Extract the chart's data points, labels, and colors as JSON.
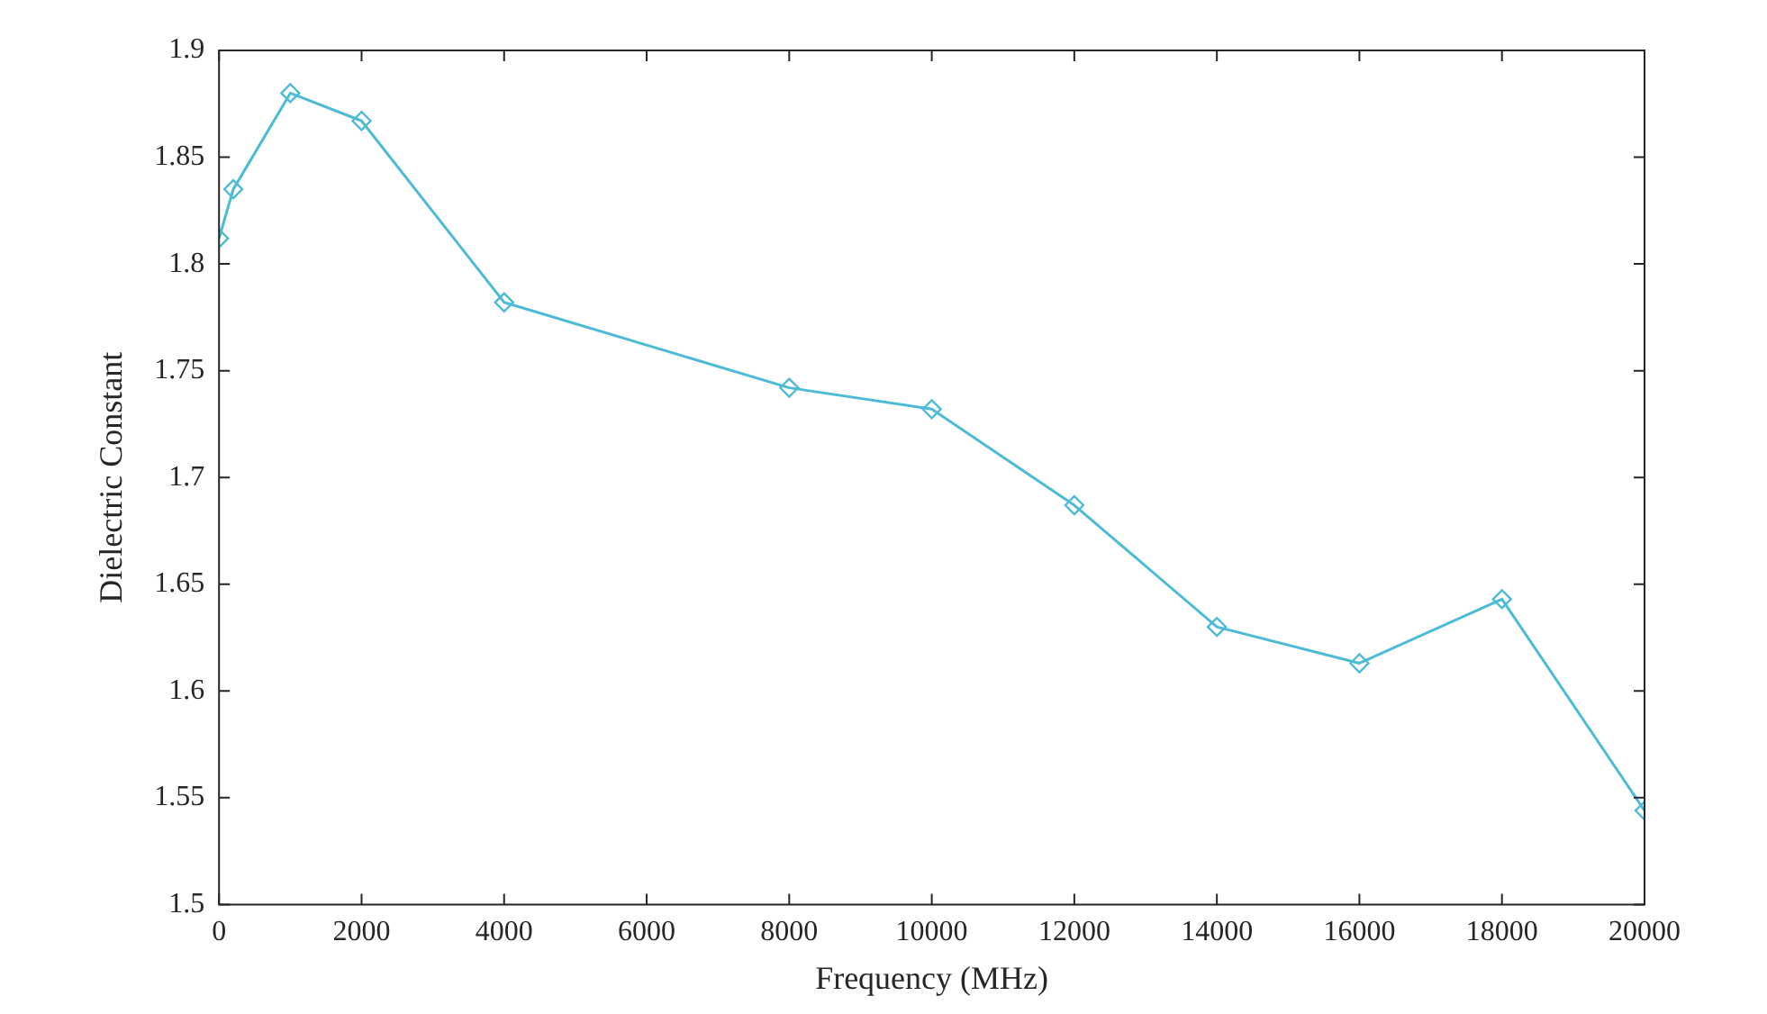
{
  "chart_data": {
    "type": "line",
    "xlabel": "Frequency (MHz)",
    "ylabel": "Dielectric Constant",
    "x": [
      0,
      200,
      1000,
      2000,
      4000,
      8000,
      10000,
      12000,
      14000,
      16000,
      18000,
      20000
    ],
    "series": [
      {
        "color": "#4dbbd5",
        "values": [
          1.812,
          1.835,
          1.88,
          1.867,
          1.782,
          1.742,
          1.732,
          1.687,
          1.63,
          1.613,
          1.643,
          1.544
        ]
      }
    ],
    "xlim": [
      0,
      20000
    ],
    "xticks": [
      0,
      2000,
      4000,
      6000,
      8000,
      10000,
      12000,
      14000,
      16000,
      18000,
      20000
    ],
    "ylim": [
      1.5,
      1.9
    ],
    "yticks": [
      1.5,
      1.55,
      1.6,
      1.65,
      1.7,
      1.75,
      1.8,
      1.85,
      1.9
    ],
    "marker": "diamond",
    "line_style": "solid",
    "legend": false
  }
}
